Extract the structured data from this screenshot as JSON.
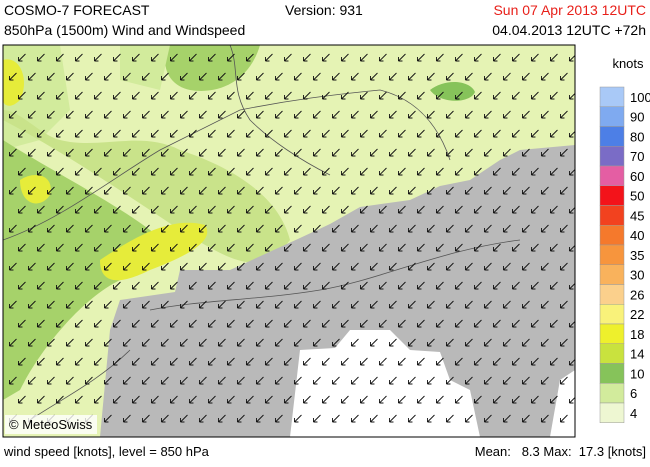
{
  "header": {
    "title": "COSMO-7 FORECAST",
    "subtitle": "850hPa (1500m) Wind and Windspeed",
    "version": "Version: 931",
    "valid_time": "Sun 07 Apr 2013 12UTC",
    "run_time": "04.04.2013 12UTC +72h"
  },
  "legend": {
    "title": "knots",
    "entries": [
      {
        "label": "100",
        "color": "#a9c9f7"
      },
      {
        "label": "90",
        "color": "#7faaf0"
      },
      {
        "label": "80",
        "color": "#4d7fe6"
      },
      {
        "label": "70",
        "color": "#7a6cc6"
      },
      {
        "label": "60",
        "color": "#e45ea3"
      },
      {
        "label": "50",
        "color": "#f3131a"
      },
      {
        "label": "45",
        "color": "#f2421f"
      },
      {
        "label": "40",
        "color": "#f5792c"
      },
      {
        "label": "35",
        "color": "#f7953d"
      },
      {
        "label": "30",
        "color": "#f9b25c"
      },
      {
        "label": "26",
        "color": "#fbd08c"
      },
      {
        "label": "22",
        "color": "#f9f27a"
      },
      {
        "label": "18",
        "color": "#eef02c"
      },
      {
        "label": "14",
        "color": "#c9e23e"
      },
      {
        "label": "10",
        "color": "#86c35a"
      },
      {
        "label": "6",
        "color": "#d2eb9c"
      },
      {
        "label": "4",
        "color": "#eef7d2"
      }
    ]
  },
  "copyright": "© MeteoSwiss",
  "footer": {
    "left": "wind speed [knots], level = 850 hPa",
    "right": "Mean:   8.3 Max:  17.3 [knots]"
  }
}
